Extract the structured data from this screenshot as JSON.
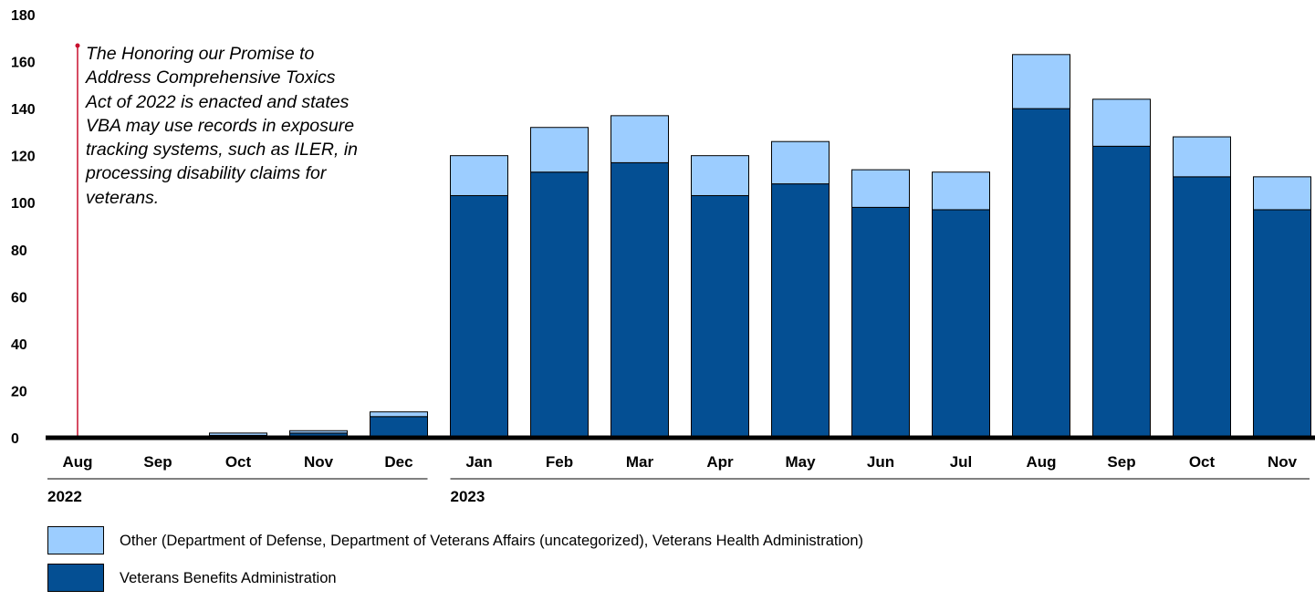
{
  "chart_data": {
    "type": "bar",
    "stacked": true,
    "categories": [
      "Aug",
      "Sep",
      "Oct",
      "Nov",
      "Dec",
      "Jan",
      "Feb",
      "Mar",
      "Apr",
      "May",
      "Jun",
      "Jul",
      "Aug",
      "Sep",
      "Oct",
      "Nov"
    ],
    "year_groups": [
      {
        "label": "2022",
        "categories": [
          "Aug",
          "Sep",
          "Oct",
          "Nov",
          "Dec"
        ]
      },
      {
        "label": "2023",
        "categories": [
          "Jan",
          "Feb",
          "Mar",
          "Apr",
          "May",
          "Jun",
          "Jul",
          "Aug",
          "Sep",
          "Oct",
          "Nov"
        ]
      }
    ],
    "series": [
      {
        "name": "Veterans Benefits Administration",
        "color": "#044f93",
        "values": [
          0,
          0,
          1,
          2,
          9,
          103,
          113,
          117,
          103,
          108,
          98,
          97,
          140,
          124,
          111,
          97
        ]
      },
      {
        "name": "Other (Department of Defense, Department of Veterans Affairs (uncategorized), Veterans Health Administration)",
        "color": "#9ccdff",
        "values": [
          0,
          0,
          1,
          1,
          2,
          17,
          19,
          20,
          17,
          18,
          16,
          16,
          23,
          20,
          17,
          14
        ]
      }
    ],
    "yticks": [
      0,
      20,
      40,
      60,
      80,
      100,
      120,
      140,
      160,
      180
    ],
    "ylim": [
      0,
      180
    ],
    "grid": false,
    "legend_position": "bottom-left",
    "annotation": {
      "category_index": 0,
      "text": "The Honoring our Promise to Address Comprehensive Toxics Act of 2022 is enacted and states VBA may use records in exposure tracking systems, such as ILER, in processing disability claims for veterans.",
      "color": "#c8102e"
    }
  }
}
